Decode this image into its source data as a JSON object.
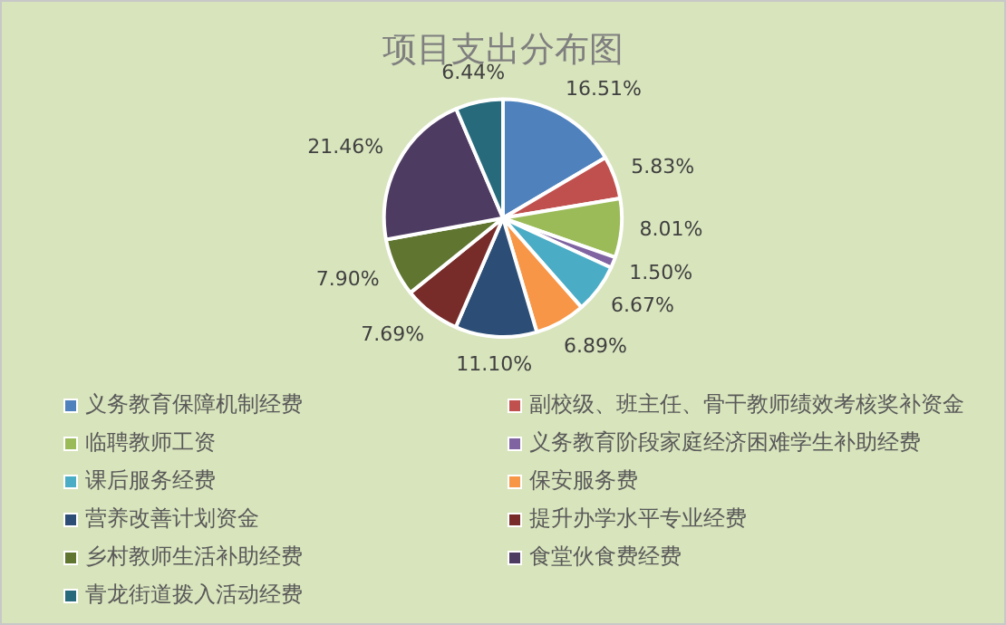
{
  "chart_data": {
    "type": "pie",
    "title": "项目支出分布图",
    "categories": [
      "义务教育保障机制经费",
      "副校级、班主任、骨干教师绩效考核奖补资金",
      "临聘教师工资",
      "义务教育阶段家庭经济困难学生补助经费",
      "课后服务经费",
      "保安服务费",
      "营养改善计划资金",
      "提升办学水平专业经费",
      "乡村教师生活补助经费",
      "食堂伙食费经费",
      "青龙街道拨入活动经费"
    ],
    "values": [
      16.51,
      5.83,
      8.01,
      1.5,
      6.67,
      6.89,
      11.1,
      7.69,
      7.9,
      21.46,
      6.44
    ],
    "value_labels": [
      "16.51%",
      "5.83%",
      "8.01%",
      "1.50%",
      "6.67%",
      "6.89%",
      "11.10%",
      "7.69%",
      "7.90%",
      "21.46%",
      "6.44%"
    ],
    "colors": [
      "#4f81bd",
      "#c0504d",
      "#9bbb59",
      "#8064a2",
      "#4bacc6",
      "#f79646",
      "#2c4d75",
      "#772c2a",
      "#5f7530",
      "#4d3b62",
      "#276a7c"
    ],
    "legend": "bottom"
  }
}
